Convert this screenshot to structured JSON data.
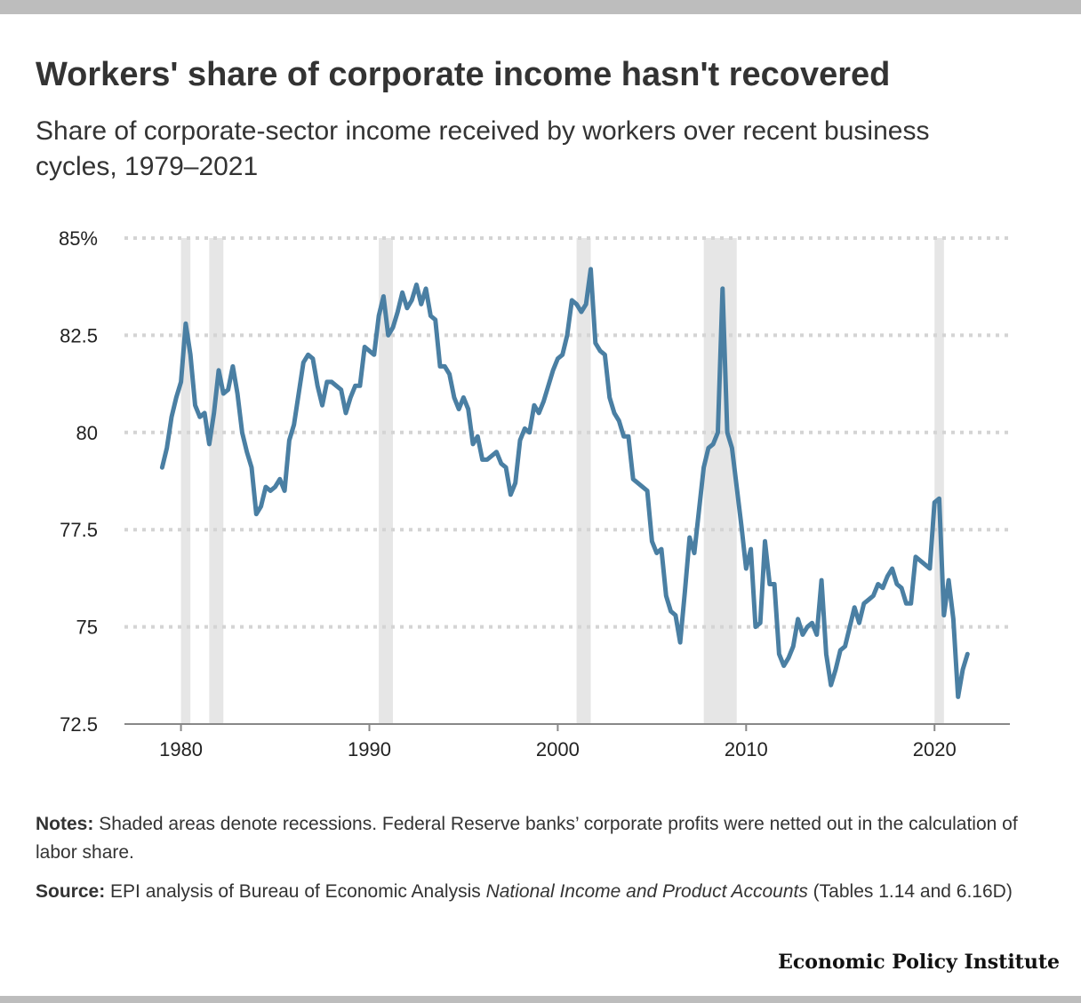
{
  "header": {
    "title": "Workers' share of corporate income hasn't recovered",
    "subtitle": "Share of corporate-sector income received by workers over recent business cycles, 1979–2021"
  },
  "footer": {
    "notes_label": "Notes:",
    "notes_text": "Shaded areas denote recessions. Federal Reserve banks’ corporate profits were netted out in the calculation of labor share.",
    "source_label": "Source:",
    "source_text_pre": "EPI analysis of Bureau of Economic Analysis ",
    "source_italic": "National Income and Product Accounts",
    "source_text_post": " (Tables 1.14 and 6.16D)",
    "brand": "Economic Policy Institute"
  },
  "colors": {
    "line": "#4a7fa3",
    "recession": "#e6e6e6",
    "gridline": "#d4d4d4",
    "axis": "#888888"
  },
  "chart_data": {
    "type": "line",
    "title": "Workers' share of corporate income hasn't recovered",
    "subtitle": "Share of corporate-sector income received by workers over recent business cycles, 1979–2021",
    "xlabel": "",
    "ylabel": "",
    "xlim": [
      1977,
      2024
    ],
    "ylim": [
      72.5,
      85
    ],
    "x_ticks": [
      1980,
      1990,
      2000,
      2010,
      2020
    ],
    "x_tick_labels": [
      "1980",
      "1990",
      "2000",
      "2010",
      "2020"
    ],
    "y_ticks": [
      72.5,
      75,
      77.5,
      80,
      82.5,
      85
    ],
    "y_tick_labels": [
      "72.5",
      "75",
      "77.5",
      "80",
      "82.5",
      "85%"
    ],
    "grid": true,
    "recessions": [
      [
        1980.0,
        1980.5
      ],
      [
        1981.5,
        1982.25
      ],
      [
        1990.5,
        1991.25
      ],
      [
        2001.0,
        2001.75
      ],
      [
        2007.75,
        2009.5
      ],
      [
        2020.0,
        2020.5
      ]
    ],
    "series": [
      {
        "x": [
          1979.0,
          1979.25,
          1979.5,
          1979.75,
          1980.0,
          1980.25,
          1980.5,
          1980.75,
          1981.0,
          1981.25,
          1981.5,
          1981.75,
          1982.0,
          1982.25,
          1982.5,
          1982.75,
          1983.0,
          1983.25,
          1983.5,
          1983.75,
          1984.0,
          1984.25,
          1984.5,
          1984.75,
          1985.0,
          1985.25,
          1985.5,
          1985.75,
          1986.0,
          1986.25,
          1986.5,
          1986.75,
          1987.0,
          1987.25,
          1987.5,
          1987.75,
          1988.0,
          1988.25,
          1988.5,
          1988.75,
          1989.0,
          1989.25,
          1989.5,
          1989.75,
          1990.0,
          1990.25,
          1990.5,
          1990.75,
          1991.0,
          1991.25,
          1991.5,
          1991.75,
          1992.0,
          1992.25,
          1992.5,
          1992.75,
          1993.0,
          1993.25,
          1993.5,
          1993.75,
          1994.0,
          1994.25,
          1994.5,
          1994.75,
          1995.0,
          1995.25,
          1995.5,
          1995.75,
          1996.0,
          1996.25,
          1996.5,
          1996.75,
          1997.0,
          1997.25,
          1997.5,
          1997.75,
          1998.0,
          1998.25,
          1998.5,
          1998.75,
          1999.0,
          1999.25,
          1999.5,
          1999.75,
          2000.0,
          2000.25,
          2000.5,
          2000.75,
          2001.0,
          2001.25,
          2001.5,
          2001.75,
          2002.0,
          2002.25,
          2002.5,
          2002.75,
          2003.0,
          2003.25,
          2003.5,
          2003.75,
          2004.0,
          2004.25,
          2004.5,
          2004.75,
          2005.0,
          2005.25,
          2005.5,
          2005.75,
          2006.0,
          2006.25,
          2006.5,
          2006.75,
          2007.0,
          2007.25,
          2007.5,
          2007.75,
          2008.0,
          2008.25,
          2008.5,
          2008.75,
          2009.0,
          2009.25,
          2009.5,
          2009.75,
          2010.0,
          2010.25,
          2010.5,
          2010.75,
          2011.0,
          2011.25,
          2011.5,
          2011.75,
          2012.0,
          2012.25,
          2012.5,
          2012.75,
          2013.0,
          2013.25,
          2013.5,
          2013.75,
          2014.0,
          2014.25,
          2014.5,
          2014.75,
          2015.0,
          2015.25,
          2015.5,
          2015.75,
          2016.0,
          2016.25,
          2016.5,
          2016.75,
          2017.0,
          2017.25,
          2017.5,
          2017.75,
          2018.0,
          2018.25,
          2018.5,
          2018.75,
          2019.0,
          2019.25,
          2019.5,
          2019.75,
          2020.0,
          2020.25,
          2020.5,
          2020.75,
          2021.0,
          2021.25,
          2021.5,
          2021.75
        ],
        "values": [
          79.1,
          79.6,
          80.4,
          80.9,
          81.3,
          82.8,
          82.0,
          80.7,
          80.4,
          80.5,
          79.7,
          80.5,
          81.6,
          81.0,
          81.1,
          81.7,
          81.0,
          80.0,
          79.5,
          79.1,
          77.9,
          78.1,
          78.6,
          78.5,
          78.6,
          78.8,
          78.5,
          79.8,
          80.2,
          81.0,
          81.8,
          82.0,
          81.9,
          81.2,
          80.7,
          81.3,
          81.3,
          81.2,
          81.1,
          80.5,
          80.9,
          81.2,
          81.2,
          82.2,
          82.1,
          82.0,
          83.0,
          83.5,
          82.5,
          82.7,
          83.1,
          83.6,
          83.2,
          83.4,
          83.8,
          83.3,
          83.7,
          83.0,
          82.9,
          81.7,
          81.7,
          81.5,
          80.9,
          80.6,
          80.9,
          80.6,
          79.7,
          79.9,
          79.3,
          79.3,
          79.4,
          79.5,
          79.2,
          79.1,
          78.4,
          78.7,
          79.8,
          80.1,
          80.0,
          80.7,
          80.5,
          80.8,
          81.2,
          81.6,
          81.9,
          82.0,
          82.5,
          83.4,
          83.3,
          83.1,
          83.3,
          84.2,
          82.3,
          82.1,
          82.0,
          80.9,
          80.5,
          80.3,
          79.9,
          79.9,
          78.8,
          78.7,
          78.6,
          78.5,
          77.2,
          76.9,
          77.0,
          75.8,
          75.4,
          75.3,
          74.6,
          75.9,
          77.3,
          76.9,
          78.0,
          79.1,
          79.6,
          79.7,
          80.0,
          83.7,
          80.0,
          79.6,
          78.6,
          77.6,
          76.5,
          77.0,
          75.0,
          75.1,
          77.2,
          76.1,
          76.1,
          74.3,
          74.0,
          74.2,
          74.5,
          75.2,
          74.8,
          75.0,
          75.1,
          74.8,
          76.2,
          74.3,
          73.5,
          73.9,
          74.4,
          74.5,
          75.0,
          75.5,
          75.1,
          75.6,
          75.7,
          75.8,
          76.1,
          76.0,
          76.3,
          76.5,
          76.1,
          76.0,
          75.6,
          75.6,
          76.8,
          76.7,
          76.6,
          76.5,
          78.2,
          78.3,
          75.3,
          76.2,
          75.2,
          73.2,
          73.9,
          74.3
        ]
      }
    ]
  }
}
